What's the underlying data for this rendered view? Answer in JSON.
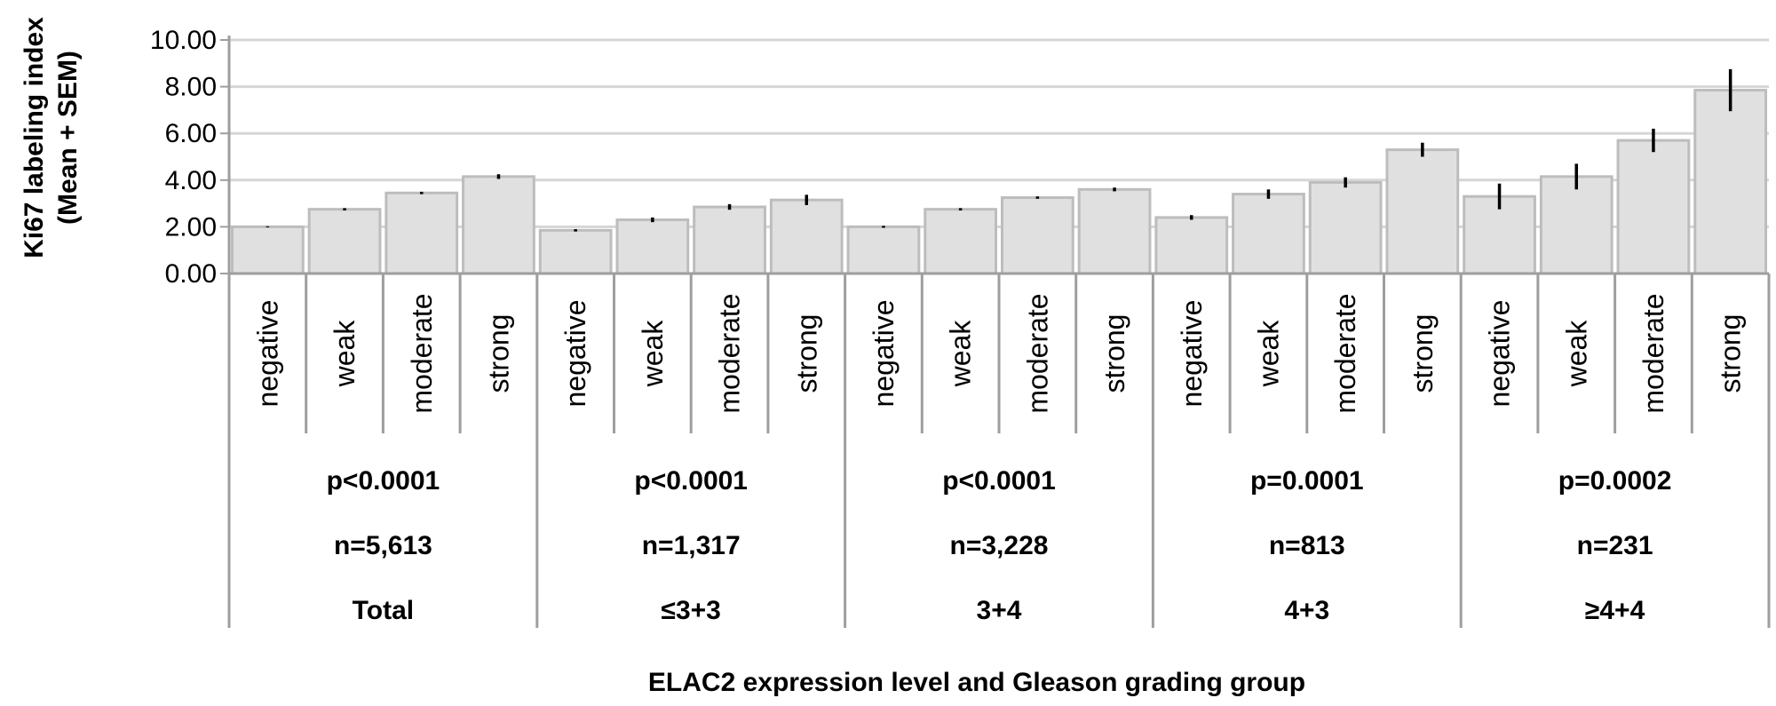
{
  "chart_data": {
    "type": "bar",
    "ylabel_lines": [
      "Ki67 labeling index",
      "(Mean + SEM)"
    ],
    "xlabel": "ELAC2 expression level and Gleason grading group",
    "ylim": [
      0,
      10
    ],
    "yticks": [
      "0.00",
      "2.00",
      "4.00",
      "6.00",
      "8.00",
      "10.00"
    ],
    "grid": true,
    "groups": [
      {
        "name": "Total",
        "p": "p<0.0001",
        "n": "n=5,613",
        "bars": [
          {
            "category": "negative",
            "value": 2.0,
            "sem": 0.02
          },
          {
            "category": "weak",
            "value": 2.75,
            "sem": 0.05
          },
          {
            "category": "moderate",
            "value": 3.45,
            "sem": 0.05
          },
          {
            "category": "strong",
            "value": 4.15,
            "sem": 0.1
          }
        ]
      },
      {
        "name": "≤3+3",
        "p": "p<0.0001",
        "n": "n=1,317",
        "bars": [
          {
            "category": "negative",
            "value": 1.85,
            "sem": 0.05
          },
          {
            "category": "weak",
            "value": 2.3,
            "sem": 0.1
          },
          {
            "category": "moderate",
            "value": 2.85,
            "sem": 0.12
          },
          {
            "category": "strong",
            "value": 3.15,
            "sem": 0.22
          }
        ]
      },
      {
        "name": "3+4",
        "p": "p<0.0001",
        "n": "n=3,228",
        "bars": [
          {
            "category": "negative",
            "value": 2.0,
            "sem": 0.04
          },
          {
            "category": "weak",
            "value": 2.75,
            "sem": 0.05
          },
          {
            "category": "moderate",
            "value": 3.25,
            "sem": 0.05
          },
          {
            "category": "strong",
            "value": 3.6,
            "sem": 0.08
          }
        ]
      },
      {
        "name": "4+3",
        "p": "p=0.0001",
        "n": "n=813",
        "bars": [
          {
            "category": "negative",
            "value": 2.4,
            "sem": 0.1
          },
          {
            "category": "weak",
            "value": 3.4,
            "sem": 0.2
          },
          {
            "category": "moderate",
            "value": 3.9,
            "sem": 0.22
          },
          {
            "category": "strong",
            "value": 5.3,
            "sem": 0.3
          }
        ]
      },
      {
        "name": "≥4+4",
        "p": "p=0.0002",
        "n": "n=231",
        "bars": [
          {
            "category": "negative",
            "value": 3.3,
            "sem": 0.55
          },
          {
            "category": "weak",
            "value": 4.15,
            "sem": 0.55
          },
          {
            "category": "moderate",
            "value": 5.7,
            "sem": 0.5
          },
          {
            "category": "strong",
            "value": 7.85,
            "sem": 0.9
          }
        ]
      }
    ],
    "colors": {
      "bar_fill": "#e0e0e0",
      "bar_stroke": "#bdbdbd",
      "grid": "#d6d6d6",
      "axis": "#9e9e9e",
      "error": "#000000"
    }
  }
}
